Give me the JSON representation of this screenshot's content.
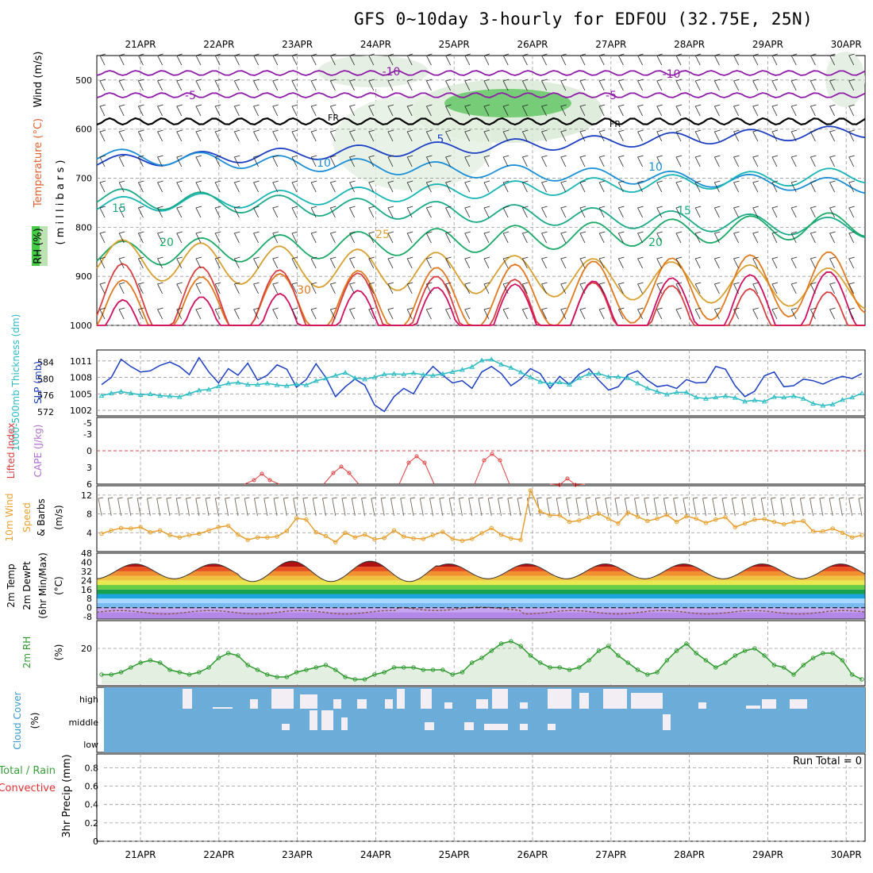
{
  "title": "GFS 0~10day 3-hourly for EDFOU (32.75E, 25N)",
  "dates": [
    "21APR",
    "22APR",
    "23APR",
    "24APR",
    "25APR",
    "26APR",
    "27APR",
    "28APR",
    "29APR",
    "30APR"
  ],
  "run_total": "Run Total = 0",
  "labels": {
    "p1_wind": "Wind (m/s)",
    "p1_temp": "Temperature (°C)",
    "p1_rh": "RH (%)",
    "p1_mb": "(millibars)",
    "p2_thick": "1000-500mb Thickness (dm)",
    "p2_slp": "SLP (mb)",
    "p3_li": "Lifted Index",
    "p3_cape": "CAPE (J/kg)",
    "p4_a": "10m Wind",
    "p4_b": "Speed",
    "p4_c": "& Barbs",
    "p4_unit": "(m/s)",
    "p5_a": "2m Temp",
    "p5_b": "2m DewPt",
    "p5_c": "(6hr Min/Max)",
    "p5_unit": "(°C)",
    "p6_a": "2m RH",
    "p6_unit": "(%)",
    "p7_a": "Cloud Cover",
    "p7_unit": "(%)",
    "p8_a": "Total / Rain",
    "p8_b": "Convective",
    "p8_c": "3hr Precip (mm)",
    "fr": "FR"
  },
  "colors": {
    "slp": "#1c3fc4",
    "thick": "#2bbcc4",
    "li": "#e04040",
    "wind10": "#e8a030",
    "rh": "#2e9a2e",
    "rhfill": "#e3f0e1",
    "cloud": "#6badd8",
    "cloudwhite": "#f2eef4",
    "barb": "#7a6a5a",
    "grid": "#999999"
  },
  "chart_data": [
    {
      "panel": "upper-air",
      "type": "line",
      "y_label": "millibars",
      "y_ticks": [
        500,
        600,
        700,
        800,
        900,
        1000
      ],
      "isotherm_labels": [
        "-10",
        "-10",
        "-5",
        "-5",
        "FR",
        "FR",
        "5",
        "10",
        "10",
        "15",
        "15",
        "20",
        "20",
        "25",
        "30"
      ]
    },
    {
      "panel": "slp-thickness",
      "type": "line",
      "y_left_ticks": [
        572,
        576,
        580,
        584
      ],
      "y_right_ticks": [
        1002,
        1005,
        1008,
        1011
      ],
      "series": [
        {
          "name": "SLP (mb)",
          "values": [
            1006.7,
            1008,
            1011.3,
            1010,
            1009,
            1009.2,
            1010.2,
            1010.8,
            1010,
            1008.5,
            1011.6,
            1009,
            1007,
            1009.6,
            1008.4,
            1010.6,
            1007.5,
            1008.4,
            1010.3,
            1009.5,
            1006.2,
            1007.6,
            1010.5,
            1008,
            1004.5,
            1006.3,
            1007.7,
            1006.6,
            1003,
            1001.8,
            1004.5,
            1006,
            1005,
            1008,
            1010,
            1008.4,
            1007,
            1007.4,
            1006,
            1009,
            1010,
            1008.7,
            1006.5,
            1007.7,
            1009.6,
            1008.7,
            1006,
            1008.2,
            1006.7,
            1008.6,
            1009.6,
            1007.5,
            1005.7,
            1006.3,
            1008.5,
            1009.2,
            1007.5,
            1006.3,
            1006.6,
            1006,
            1007.6,
            1007,
            1007.1,
            1010,
            1009.5,
            1006.5,
            1004.5,
            1005.5,
            1008.3,
            1009,
            1006.3,
            1006.5,
            1007.7,
            1007.4,
            1006.8,
            1007.6,
            1008.2,
            1007.8,
            1008.7
          ]
        },
        {
          "name": "1000-500mb Thickness (dm)",
          "values": [
            575.9,
            576.5,
            576.9,
            576.5,
            576.1,
            576.3,
            575.9,
            575.8,
            575.6,
            576.4,
            577.2,
            577.4,
            578.2,
            578.9,
            579.1,
            578.6,
            578.6,
            578.9,
            578.5,
            578.3,
            578.7,
            578.5,
            579.5,
            580.1,
            580.8,
            581.5,
            580.2,
            579.9,
            580.4,
            581.1,
            581.2,
            581.1,
            581.4,
            581,
            580.8,
            581.2,
            581.7,
            582.2,
            582.9,
            584.5,
            584.7,
            583.5,
            582.7,
            581.6,
            580.4,
            579.3,
            578.8,
            579.2,
            578.6,
            580.2,
            581.2,
            581.3,
            580.5,
            580.5,
            580.2,
            578.9,
            577.7,
            576.9,
            576.2,
            576.7,
            576.7,
            575.5,
            575.2,
            575.5,
            575.8,
            575.4,
            574.5,
            574.8,
            574.5,
            575.6,
            575.5,
            575.8,
            575.2,
            574,
            573.5,
            573.8,
            574.9,
            575.5,
            576.5
          ]
        }
      ]
    },
    {
      "panel": "lifted-cape",
      "type": "line",
      "y_ticks": [
        -5,
        -3,
        0,
        3,
        6
      ],
      "zero_line": 0,
      "series": [
        {
          "name": "Lifted Index",
          "peaks": [
            {
              "day": "22APR",
              "value": 4.9
            },
            {
              "day": "23APR",
              "value": 3.7
            },
            {
              "day": "24APR",
              "value": 1.0
            },
            {
              "day": "25APR",
              "value": 0.0
            },
            {
              "day": "26APR",
              "value": 5.2
            }
          ]
        }
      ]
    },
    {
      "panel": "wind10m",
      "type": "line",
      "y_ticks": [
        4,
        8,
        12
      ],
      "series": [
        {
          "name": "Speed",
          "values": [
            3.8,
            4.5,
            5.0,
            4.9,
            5.2,
            4.1,
            4.5,
            3.5,
            3.0,
            3.5,
            3.8,
            4.5,
            5.2,
            5.5,
            3.6,
            2.5,
            3.0,
            3.0,
            3.2,
            4.4,
            7.1,
            6.8,
            4.1,
            3.3,
            2.0,
            4.0,
            3.0,
            3.6,
            2.6,
            2.9,
            4.5,
            3.2,
            2.8,
            2.7,
            3.5,
            4.2,
            2.7,
            2.3,
            2.7,
            3.9,
            5.0,
            3.6,
            2.8,
            2.5,
            13.0,
            8.5,
            7.7,
            7.7,
            6.3,
            6.6,
            7.3,
            8.1,
            7.0,
            6.0,
            8.3,
            7.4,
            6.5,
            7.0,
            7.8,
            6.3,
            7.5,
            7.0,
            6.1,
            6.8,
            7.3,
            5.2,
            6.0,
            6.8,
            6.9,
            6.3,
            5.8,
            6.3,
            6.5,
            4.3,
            4.3,
            4.9,
            4.0,
            3.0,
            3.5
          ]
        }
      ]
    },
    {
      "panel": "temp-dewpt",
      "type": "area",
      "y_ticks": [
        -8,
        0,
        8,
        16,
        24,
        32,
        40,
        48
      ],
      "series": [
        {
          "name": "2m Temp",
          "min": 25,
          "max": 41
        },
        {
          "name": "2m DewPt",
          "min": -6,
          "max": 1
        }
      ]
    },
    {
      "panel": "rh2m",
      "type": "line",
      "y_ticks": [
        20
      ],
      "series": [
        {
          "name": "2m RH",
          "values": [
            9,
            9,
            10,
            12,
            14,
            15,
            14,
            11,
            10,
            9,
            10,
            12,
            16,
            18,
            17,
            13,
            11,
            9,
            8,
            8,
            10,
            11,
            12,
            13,
            11,
            8,
            7,
            7,
            9,
            10,
            12,
            12,
            12,
            11,
            11,
            11,
            9,
            10,
            14,
            16,
            19,
            22,
            23,
            21,
            17,
            14,
            12,
            12,
            11,
            12,
            15,
            19,
            21,
            17,
            14,
            11,
            9,
            10,
            15,
            19,
            22,
            18,
            15,
            12,
            14,
            17,
            19,
            20,
            17,
            13,
            12,
            9,
            13,
            16,
            18,
            18,
            15,
            9,
            7
          ]
        }
      ]
    },
    {
      "panel": "cloud-cover",
      "type": "heatmap",
      "y_ticks": [
        "high",
        "middle",
        "low"
      ]
    },
    {
      "panel": "precip",
      "type": "bar",
      "y_ticks": [
        0,
        0.2,
        0.4,
        0.6,
        0.8
      ],
      "values": []
    }
  ]
}
